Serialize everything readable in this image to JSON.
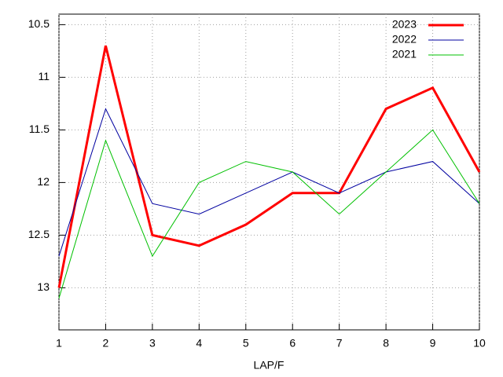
{
  "chart_data": {
    "type": "line",
    "xlabel": "LAP/F",
    "x": [
      1,
      2,
      3,
      4,
      5,
      6,
      7,
      8,
      9,
      10
    ],
    "series": [
      {
        "name": "2023",
        "color": "#ff0000",
        "width": 3,
        "values": [
          13.0,
          10.7,
          12.5,
          12.6,
          12.4,
          12.1,
          12.1,
          11.3,
          11.1,
          11.9
        ]
      },
      {
        "name": "2022",
        "color": "#0000a0",
        "width": 1,
        "values": [
          12.7,
          11.3,
          12.2,
          12.3,
          12.1,
          11.9,
          12.1,
          11.9,
          11.8,
          12.2
        ]
      },
      {
        "name": "2021",
        "color": "#00c000",
        "width": 1,
        "values": [
          13.1,
          11.6,
          12.7,
          12.0,
          11.8,
          11.9,
          12.3,
          11.9,
          11.5,
          12.2
        ]
      }
    ],
    "xlim": [
      1,
      10
    ],
    "xticks": [
      1,
      2,
      3,
      4,
      5,
      6,
      7,
      8,
      9,
      10
    ],
    "ylim": [
      10.4,
      13.4
    ],
    "y_reversed": true,
    "yticks": [
      10.5,
      11,
      11.5,
      12,
      12.5,
      13
    ],
    "grid": true,
    "legend": "top-right"
  }
}
